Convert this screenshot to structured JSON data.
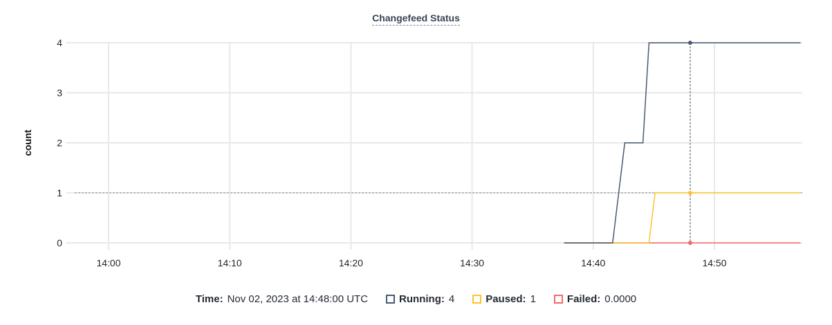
{
  "chart_data": {
    "type": "line",
    "title": "Changefeed Status",
    "ylabel": "count",
    "xlabel": "",
    "ylim": [
      0,
      4
    ],
    "xlim": [
      "13:57:30",
      "14:57:10"
    ],
    "yticks": [
      "0",
      "1",
      "2",
      "3",
      "4"
    ],
    "xticks": [
      "14:00",
      "14:10",
      "14:20",
      "14:30",
      "14:40",
      "14:50"
    ],
    "grid": true,
    "series": [
      {
        "name": "Running",
        "color": "#475872",
        "points": [
          [
            "14:37:36",
            0
          ],
          [
            "14:41:36",
            0
          ],
          [
            "14:42:36",
            2
          ],
          [
            "14:44:06",
            2
          ],
          [
            "14:44:36",
            4
          ],
          [
            "14:48:00",
            4
          ],
          [
            "14:57:06",
            4
          ]
        ]
      },
      {
        "name": "Paused",
        "color": "#ffc12e",
        "points": [
          [
            "14:37:36",
            0
          ],
          [
            "14:44:36",
            0
          ],
          [
            "14:45:06",
            1
          ],
          [
            "14:48:00",
            1
          ],
          [
            "14:57:06",
            1
          ]
        ]
      },
      {
        "name": "Failed",
        "color": "#f16969",
        "points": [
          [
            "14:37:36",
            0
          ],
          [
            "14:48:00",
            0
          ],
          [
            "14:57:06",
            0
          ]
        ]
      }
    ],
    "hover": {
      "time": "14:48:00",
      "reference_y": 1
    }
  },
  "legend": {
    "time_label": "Time:",
    "time_value": "Nov 02, 2023 at 14:48:00 UTC",
    "items": [
      {
        "label": "Running:",
        "value": "4",
        "color": "#475872"
      },
      {
        "label": "Paused:",
        "value": "1",
        "color": "#ffc12e"
      },
      {
        "label": "Failed:",
        "value": "0.0000",
        "color": "#f16969"
      }
    ]
  }
}
